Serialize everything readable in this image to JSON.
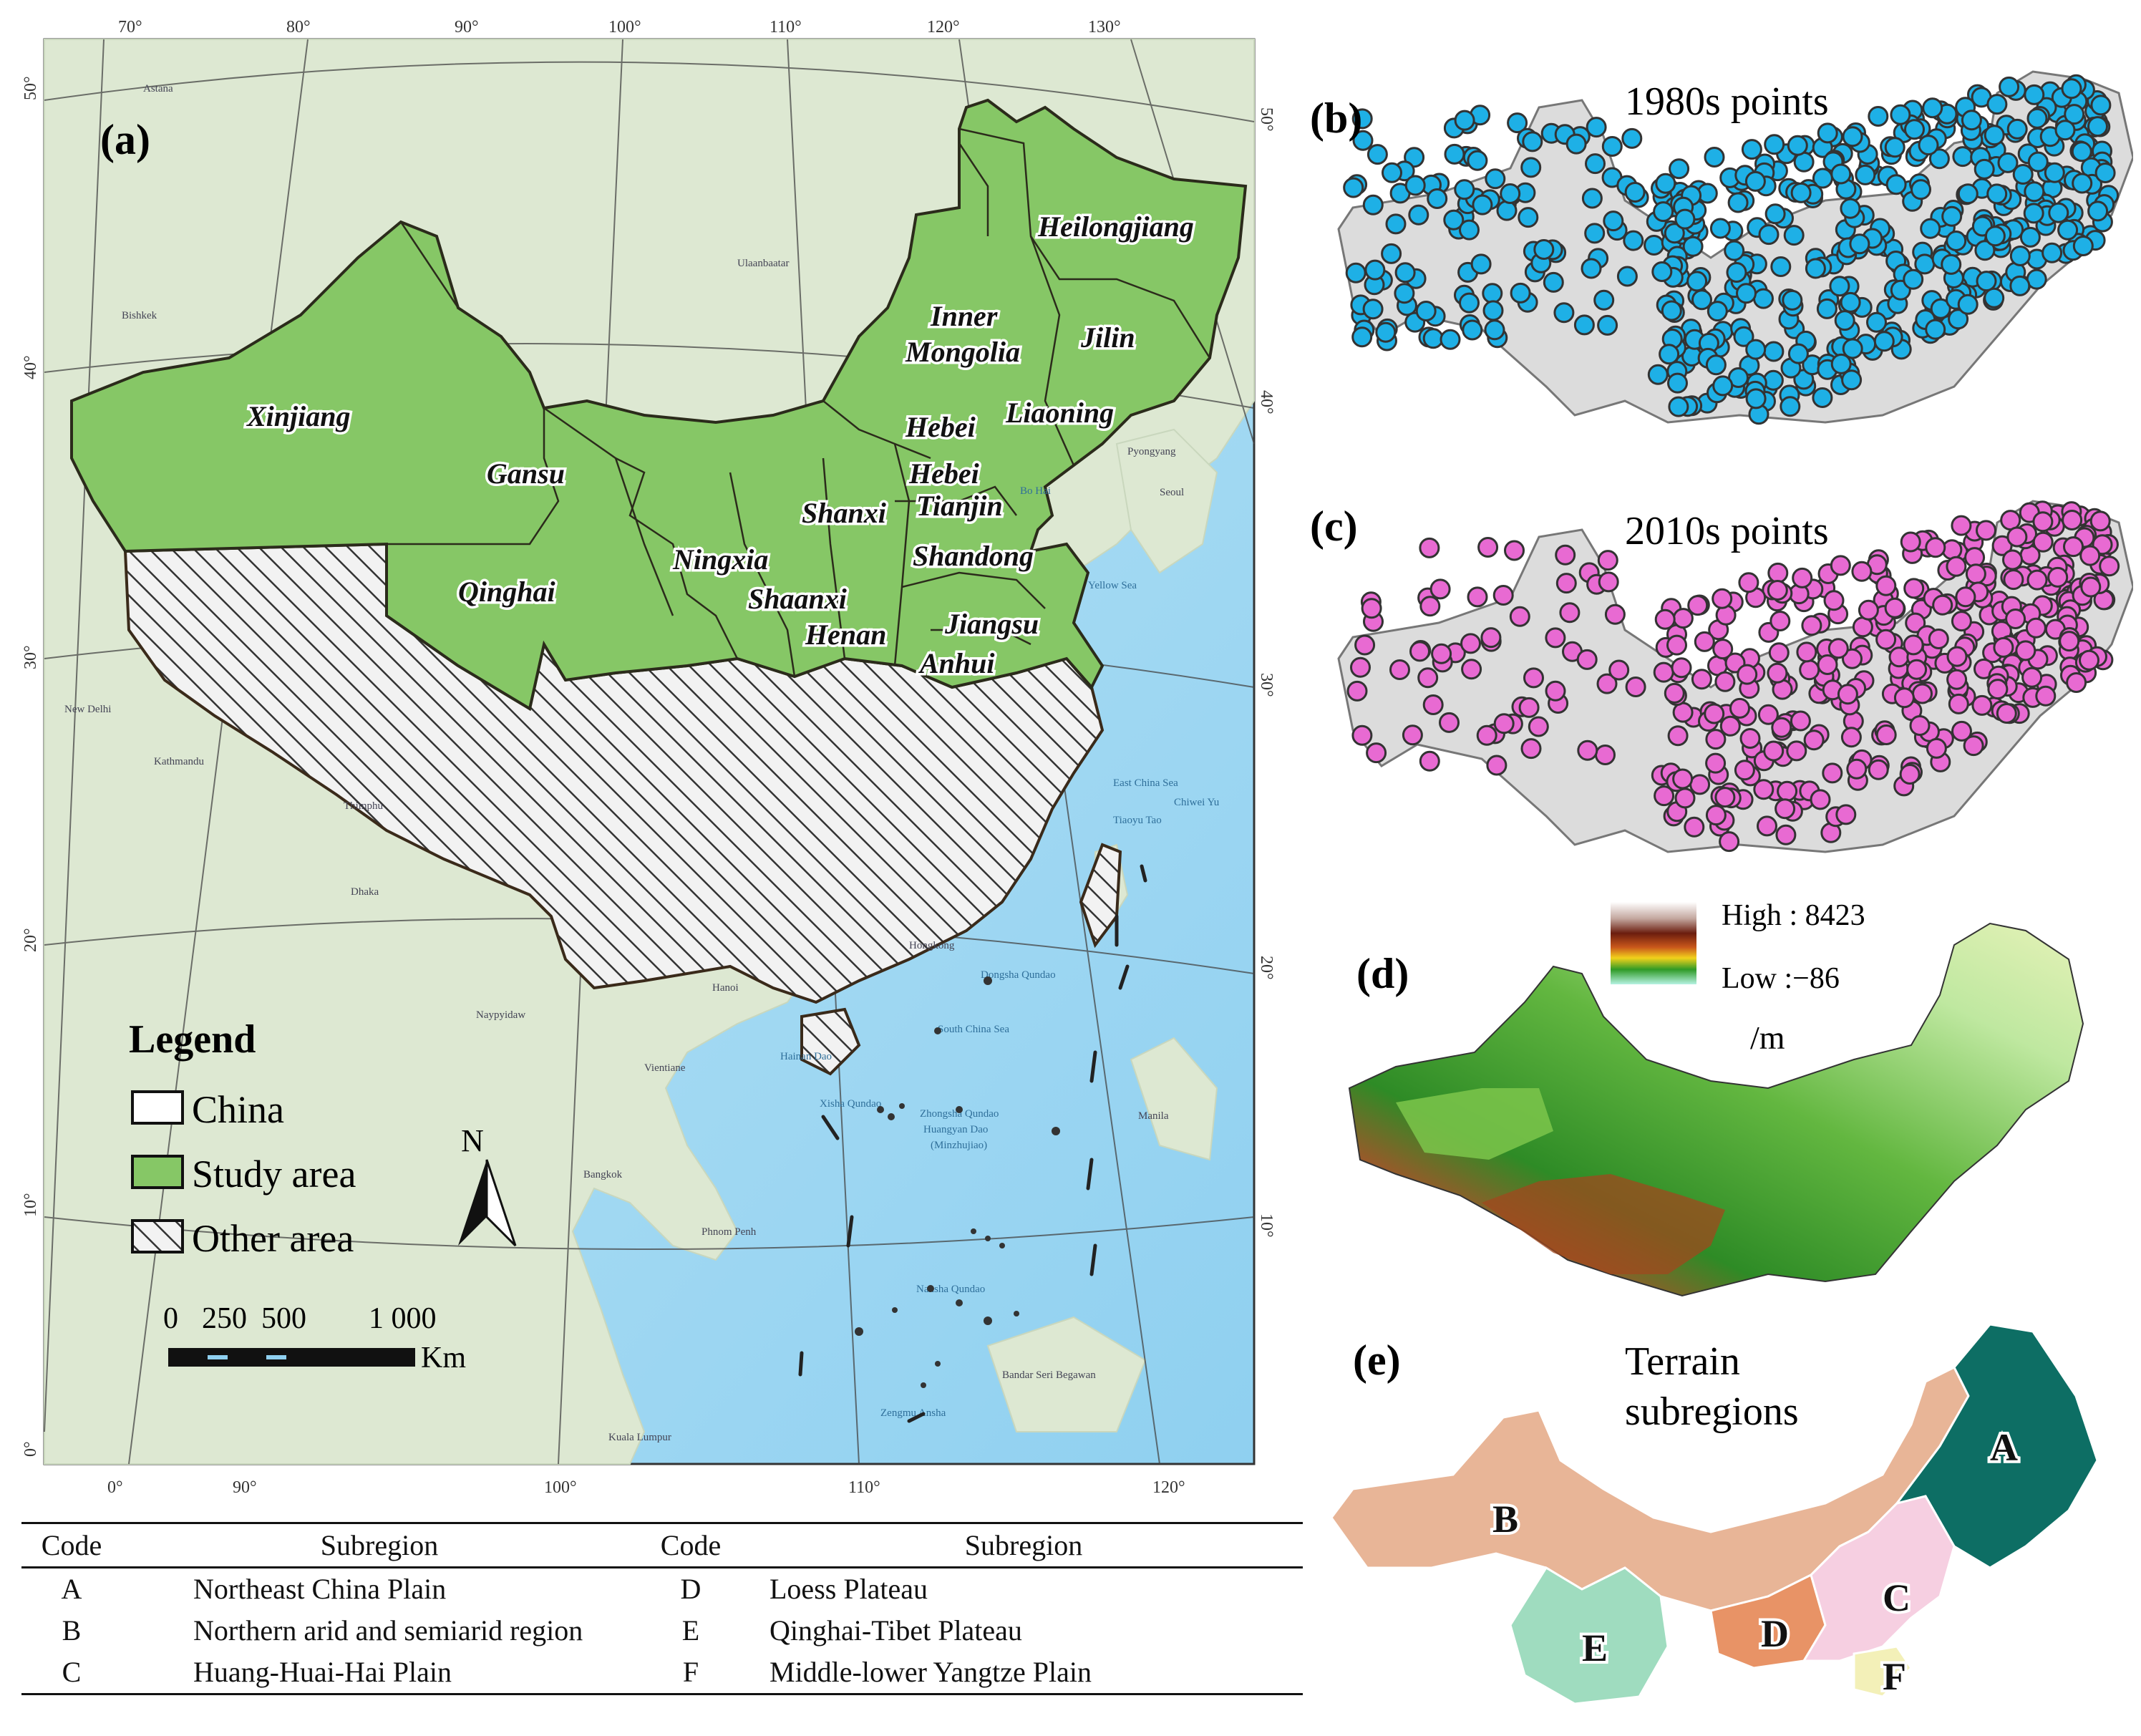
{
  "panel_a": {
    "label": "(a)",
    "lon_ticks_top": [
      "70°",
      "80°",
      "90°",
      "100°",
      "110°",
      "120°",
      "130°"
    ],
    "lon_ticks_bottom": [
      "0°",
      "90°",
      "100°",
      "110°",
      "120°"
    ],
    "lat_ticks_left": [
      "50°",
      "40°",
      "30°",
      "20°",
      "10°",
      "0°"
    ],
    "lat_ticks_right": [
      "50°",
      "40°",
      "30°",
      "20°",
      "10°"
    ],
    "provinces": [
      "Heilongjiang",
      "Inner",
      "Mongolia",
      "Jilin",
      "Liaoning",
      "Xinjiang",
      "Gansu",
      "Hebei",
      "Hebei",
      "Tianjin",
      "Shanxi",
      "Qinghai",
      "Ningxia",
      "Shandong",
      "Shaanxi",
      "Henan",
      "Jiangsu",
      "Anhui"
    ],
    "basemap_labels": [
      "Astana",
      "Bishkek",
      "Ulaanbaatar",
      "New Delhi",
      "Kathmandu",
      "Thimphu",
      "Dhaka",
      "Naypyidaw",
      "Vientiane",
      "Bangkok",
      "Phnom Penh",
      "Hanoi",
      "Hongkong",
      "Kuala Lumpur",
      "Bandar Seri Begawan",
      "Manila",
      "Pyongyang",
      "Seoul",
      "Yellow Sea",
      "East China Sea",
      "South China Sea",
      "Dongsha Qundao",
      "Xisha Qundao",
      "Zhongsha Qundao",
      "Huangyan Dao",
      "(Minzhujiao)",
      "Nansha Qundao",
      "Zengmu Ansha",
      "Tiaoyu Tao",
      "Chiwei Yu",
      "Hainan Dao",
      "Bo Hai"
    ],
    "legend": {
      "title": "Legend",
      "items": [
        {
          "label": "China",
          "swatch": "outline"
        },
        {
          "label": "Study area",
          "swatch": "#86c766"
        },
        {
          "label": "Other area",
          "swatch": "hatch"
        }
      ]
    },
    "north_arrow": "N",
    "scale_bar": {
      "ticks": [
        "0",
        "250",
        "500",
        "1 000"
      ],
      "unit": "Km"
    }
  },
  "panel_b": {
    "label": "(b)",
    "title": "1980s points",
    "point_color": "#1eb0e6"
  },
  "panel_c": {
    "label": "(c)",
    "title": "2010s points",
    "point_color": "#e86ad2"
  },
  "panel_d": {
    "label": "(d)",
    "legend_high": "High : 8423",
    "legend_low": "Low :−86",
    "unit": "/m"
  },
  "panel_e": {
    "label": "(e)",
    "title_line1": "Terrain",
    "title_line2": "subregions",
    "regions": [
      {
        "code": "A",
        "color": "#0d6e64"
      },
      {
        "code": "B",
        "color": "#e8b597"
      },
      {
        "code": "C",
        "color": "#f6cfe1"
      },
      {
        "code": "D",
        "color": "#e89366"
      },
      {
        "code": "E",
        "color": "#9fdcbf"
      },
      {
        "code": "F",
        "color": "#f3f0b8"
      }
    ]
  },
  "table": {
    "headers": [
      "Code",
      "Subregion",
      "Code",
      "Subregion"
    ],
    "rows": [
      [
        "A",
        "Northeast China Plain",
        "D",
        "Loess Plateau"
      ],
      [
        "B",
        "Northern arid and semiarid region",
        "E",
        "Qinghai-Tibet Plateau"
      ],
      [
        "C",
        "Huang-Huai-Hai Plain",
        "F",
        "Middle-lower Yangtze Plain"
      ]
    ]
  },
  "colors": {
    "study_area": "#86c766",
    "sea": "#a9dcf3",
    "land": "#dfe9d6",
    "boundary": "#3a2a1a"
  }
}
